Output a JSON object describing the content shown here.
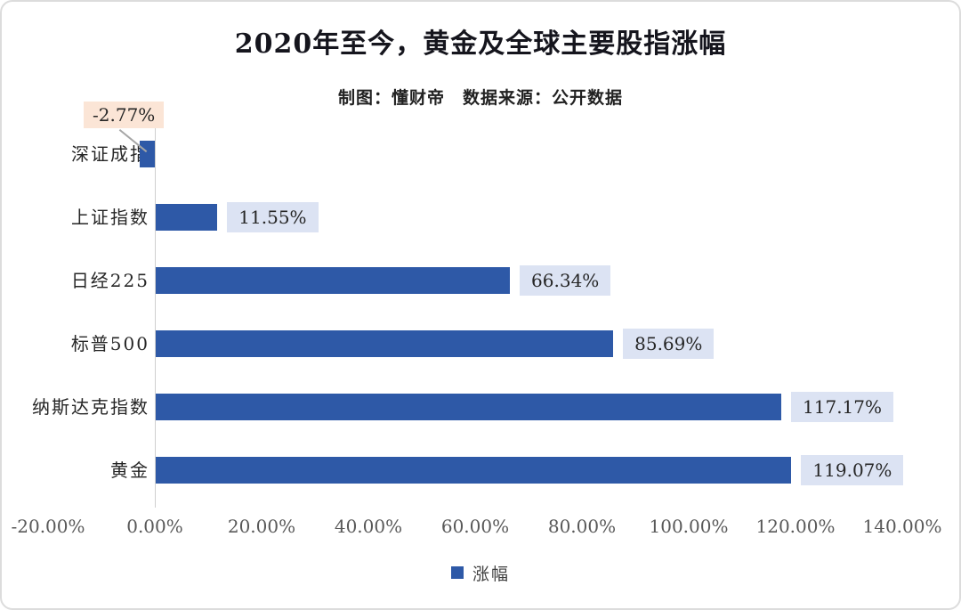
{
  "chart_data": {
    "type": "bar",
    "orientation": "horizontal",
    "title": "2020年至今，黄金及全球主要股指涨幅",
    "subtitle": "制图：懂财帝　数据来源：公开数据",
    "legend": {
      "label": "涨幅",
      "position": "bottom"
    },
    "xlabel": "",
    "ylabel": "",
    "xlim": [
      -20,
      140
    ],
    "grid": false,
    "categories": [
      "深证成指",
      "上证指数",
      "日经225",
      "标普500",
      "纳斯达克指数",
      "黄金"
    ],
    "values": [
      -2.77,
      11.55,
      66.34,
      85.69,
      117.17,
      119.07
    ],
    "rows": [
      {
        "category": "深证成指",
        "value": -2.77,
        "label": "-2.77%"
      },
      {
        "category": "上证指数",
        "value": 11.55,
        "label": "11.55%"
      },
      {
        "category": "日经225",
        "value": 66.34,
        "label": "66.34%"
      },
      {
        "category": "标普500",
        "value": 85.69,
        "label": "85.69%"
      },
      {
        "category": "纳斯达克指数",
        "value": 117.17,
        "label": "117.17%"
      },
      {
        "category": "黄金",
        "value": 119.07,
        "label": "119.07%"
      }
    ],
    "xticks": [
      {
        "value": -20,
        "label": "-20.00%"
      },
      {
        "value": 0,
        "label": "0.00%"
      },
      {
        "value": 20,
        "label": "20.00%"
      },
      {
        "value": 40,
        "label": "40.00%"
      },
      {
        "value": 60,
        "label": "60.00%"
      },
      {
        "value": 80,
        "label": "80.00%"
      },
      {
        "value": 100,
        "label": "100.00%"
      },
      {
        "value": 120,
        "label": "120.00%"
      },
      {
        "value": 140,
        "label": "140.00%"
      }
    ],
    "colors": {
      "bar": "#2e59a7",
      "value_label_bg": "#dce3f3",
      "negative_label_bg": "#fbe5d6",
      "leader_line": "#a6a6a6",
      "axis_line": "#cfcfcf",
      "tick_text": "#595959",
      "text": "#262626"
    }
  }
}
